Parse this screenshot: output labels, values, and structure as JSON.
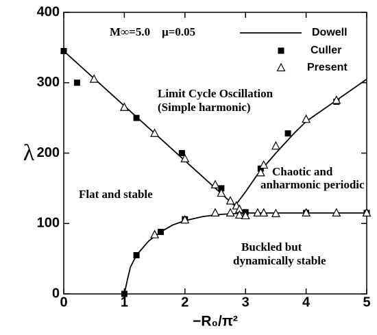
{
  "chart_data": {
    "type": "line",
    "xlabel": "−R₀/π²",
    "ylabel": "λ",
    "xlim": [
      0,
      5
    ],
    "ylim": [
      0,
      400
    ],
    "xticks": [
      0,
      1,
      2,
      3,
      4,
      5
    ],
    "yticks": [
      0,
      100,
      200,
      300,
      400
    ],
    "annotations": [
      "M∞=5.0    μ=0.05",
      "Limit Cycle Oscillation",
      "(Simple harmonic)",
      "Chaotic and",
      "anharmonic periodic",
      "Flat and stable",
      "Buckled but",
      "dynamically stable"
    ],
    "series": [
      {
        "name": "Dowell",
        "color": "#000000",
        "marker": "none",
        "x": [
          0,
          2.85,
          null,
          2.8,
          3.0,
          3.2,
          3.5,
          3.8,
          4.0,
          4.5,
          5.0,
          null,
          1.0,
          1.05,
          1.1,
          1.2,
          1.4,
          1.6,
          1.8,
          2.0,
          2.3,
          2.6,
          3.0,
          4.0,
          5.0
        ],
        "values": [
          345,
          123,
          null,
          122,
          145,
          170,
          200,
          228,
          245,
          275,
          305,
          null,
          0,
          20,
          38,
          55,
          75,
          88,
          98,
          104,
          110,
          113,
          115,
          115,
          115
        ]
      },
      {
        "name": "Culler",
        "color": "#000000",
        "marker": "square",
        "x": [
          0,
          0.22,
          1.2,
          1.95,
          2.6,
          3.25,
          3.7,
          4.5,
          1.0,
          1.2,
          1.6,
          2.0,
          3.0,
          4.0,
          5.0
        ],
        "values": [
          345,
          300,
          250,
          200,
          150,
          178,
          228,
          273,
          0,
          55,
          88,
          106,
          116,
          115,
          115
        ]
      },
      {
        "name": "Present",
        "color": "#000000",
        "marker": "triangle",
        "x": [
          0.5,
          1.0,
          1.5,
          2.0,
          2.5,
          2.6,
          2.75,
          2.85,
          2.9,
          1.5,
          2.0,
          2.5,
          2.75,
          2.9,
          3.0,
          3.2,
          3.3,
          3.5,
          4.0,
          4.5,
          5.0,
          3.25,
          3.3,
          3.5,
          4.0,
          4.5
        ],
        "values": [
          305,
          265,
          228,
          192,
          155,
          143,
          132,
          125,
          120,
          84,
          105,
          115,
          115,
          112,
          111,
          115,
          115,
          114,
          115,
          115,
          115,
          172,
          183,
          210,
          248,
          275
        ]
      }
    ]
  }
}
